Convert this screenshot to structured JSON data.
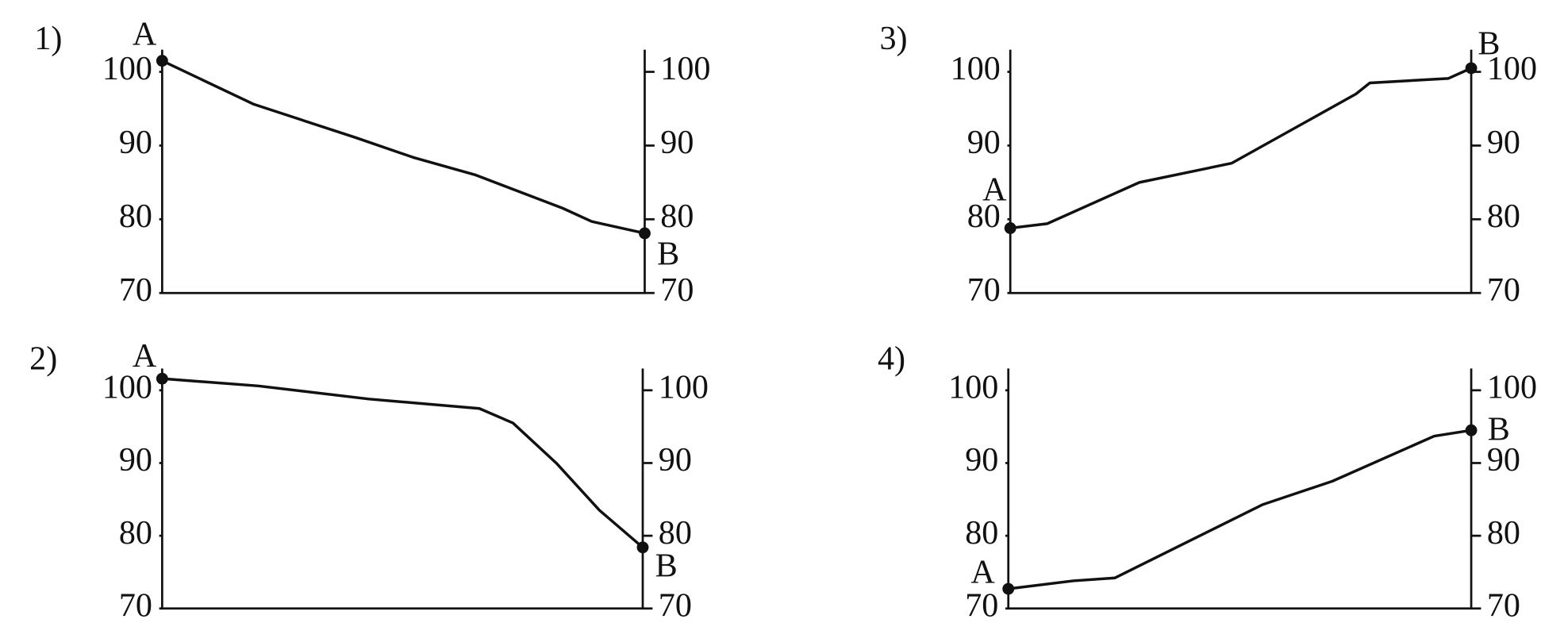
{
  "chart_data": [
    {
      "type": "line",
      "label": "1)",
      "start_label": "A",
      "end_label": "B",
      "x": [
        0,
        1.9,
        4.0,
        5.2,
        6.5,
        8.3,
        8.9,
        10
      ],
      "values": [
        101.5,
        95.6,
        91.1,
        88.4,
        86,
        81.5,
        79.7,
        78.1
      ],
      "xlim": [
        0,
        10
      ],
      "ylim": [
        70,
        103
      ],
      "yticks": [
        70,
        80,
        90,
        100
      ],
      "y2lim": [
        70,
        103
      ],
      "y2ticks": [
        70,
        80,
        90,
        100
      ],
      "color": "#111111"
    },
    {
      "type": "line",
      "label": "2)",
      "start_label": "A",
      "end_label": "B",
      "x": [
        0,
        2,
        4.3,
        6.6,
        7.3,
        8.2,
        9.1,
        10
      ],
      "values": [
        101.6,
        100.6,
        98.8,
        97.5,
        95.5,
        90,
        83.5,
        78.4
      ],
      "xlim": [
        0,
        10
      ],
      "ylim": [
        70,
        103
      ],
      "yticks": [
        70,
        80,
        90,
        100
      ],
      "y2lim": [
        70,
        103
      ],
      "y2ticks": [
        70,
        80,
        90,
        100
      ],
      "color": "#111111"
    },
    {
      "type": "line",
      "label": "3)",
      "start_label": "A",
      "end_label": "B",
      "x": [
        0,
        0.8,
        2.8,
        4.8,
        7.5,
        7.8,
        9.5,
        10
      ],
      "values": [
        78.8,
        79.4,
        85,
        87.6,
        97,
        98.5,
        99.1,
        100.5
      ],
      "xlim": [
        0,
        10
      ],
      "ylim": [
        70,
        103
      ],
      "yticks": [
        70,
        80,
        90,
        100
      ],
      "y2lim": [
        70,
        103
      ],
      "y2ticks": [
        70,
        80,
        90,
        100
      ],
      "color": "#111111"
    },
    {
      "type": "line",
      "label": "4)",
      "start_label": "A",
      "end_label": "B",
      "x": [
        0,
        1.4,
        2.3,
        5.5,
        7.0,
        9.2,
        10
      ],
      "values": [
        72.7,
        73.8,
        74.2,
        84.3,
        87.5,
        93.7,
        94.5
      ],
      "xlim": [
        0,
        10
      ],
      "ylim": [
        70,
        103
      ],
      "yticks": [
        70,
        80,
        90,
        100
      ],
      "y2lim": [
        70,
        103
      ],
      "y2ticks": [
        70,
        80,
        90,
        100
      ],
      "color": "#111111"
    }
  ]
}
